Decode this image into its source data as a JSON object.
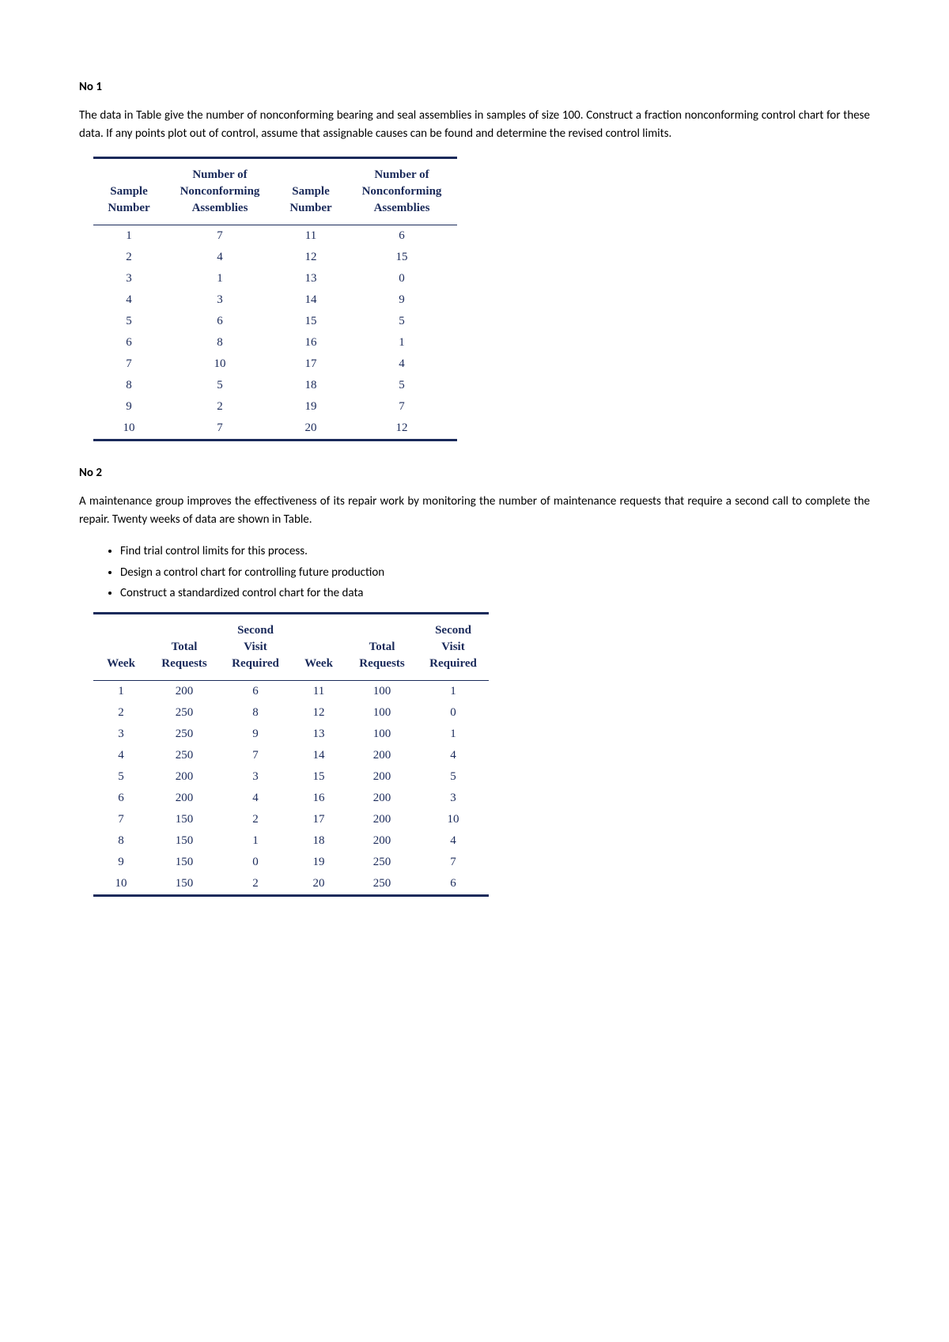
{
  "q1": {
    "heading": "No 1",
    "paragraph": "The data in Table give the number of nonconforming bearing and seal assemblies in samples of size 100. Construct a fraction nonconforming control chart for these data. If any points plot out of control, assume that assignable causes can be found and determine the revised control limits.",
    "table": {
      "headers": {
        "c1": "Sample Number",
        "c2": "Number of Nonconforming Assemblies",
        "c3": "Sample Number",
        "c4": "Number of Nonconforming Assemblies"
      },
      "rows": [
        {
          "a": "1",
          "b": "7",
          "c": "11",
          "d": "6"
        },
        {
          "a": "2",
          "b": "4",
          "c": "12",
          "d": "15"
        },
        {
          "a": "3",
          "b": "1",
          "c": "13",
          "d": "0"
        },
        {
          "a": "4",
          "b": "3",
          "c": "14",
          "d": "9"
        },
        {
          "a": "5",
          "b": "6",
          "c": "15",
          "d": "5"
        },
        {
          "a": "6",
          "b": "8",
          "c": "16",
          "d": "1"
        },
        {
          "a": "7",
          "b": "10",
          "c": "17",
          "d": "4"
        },
        {
          "a": "8",
          "b": "5",
          "c": "18",
          "d": "5"
        },
        {
          "a": "9",
          "b": "2",
          "c": "19",
          "d": "7"
        },
        {
          "a": "10",
          "b": "7",
          "c": "20",
          "d": "12"
        }
      ]
    }
  },
  "q2": {
    "heading": "No 2",
    "paragraph": "A maintenance group improves the effectiveness of its repair work by monitoring the number of maintenance requests that require a second call to complete the repair. Twenty weeks of data are shown in Table.",
    "bullets": [
      "Find trial control limits for this process.",
      "Design a control chart for controlling future production",
      "Construct a standardized control chart for the data"
    ],
    "table": {
      "headers": {
        "c1": "Week",
        "c2": "Total Requests",
        "c3": "Second Visit Required",
        "c4": "Week",
        "c5": "Total Requests",
        "c6": "Second Visit Required"
      },
      "rows": [
        {
          "a": "1",
          "b": "200",
          "c": "6",
          "d": "11",
          "e": "100",
          "f": "1"
        },
        {
          "a": "2",
          "b": "250",
          "c": "8",
          "d": "12",
          "e": "100",
          "f": "0"
        },
        {
          "a": "3",
          "b": "250",
          "c": "9",
          "d": "13",
          "e": "100",
          "f": "1"
        },
        {
          "a": "4",
          "b": "250",
          "c": "7",
          "d": "14",
          "e": "200",
          "f": "4"
        },
        {
          "a": "5",
          "b": "200",
          "c": "3",
          "d": "15",
          "e": "200",
          "f": "5"
        },
        {
          "a": "6",
          "b": "200",
          "c": "4",
          "d": "16",
          "e": "200",
          "f": "3"
        },
        {
          "a": "7",
          "b": "150",
          "c": "2",
          "d": "17",
          "e": "200",
          "f": "10"
        },
        {
          "a": "8",
          "b": "150",
          "c": "1",
          "d": "18",
          "e": "200",
          "f": "4"
        },
        {
          "a": "9",
          "b": "150",
          "c": "0",
          "d": "19",
          "e": "250",
          "f": "7"
        },
        {
          "a": "10",
          "b": "150",
          "c": "2",
          "d": "20",
          "e": "250",
          "f": "6"
        }
      ]
    }
  },
  "style": {
    "table_border_color": "#1a2a5a",
    "table_text_color": "#1a2a5a",
    "body_font": "Calibri",
    "table_font": "Times New Roman",
    "background_color": "#ffffff"
  }
}
